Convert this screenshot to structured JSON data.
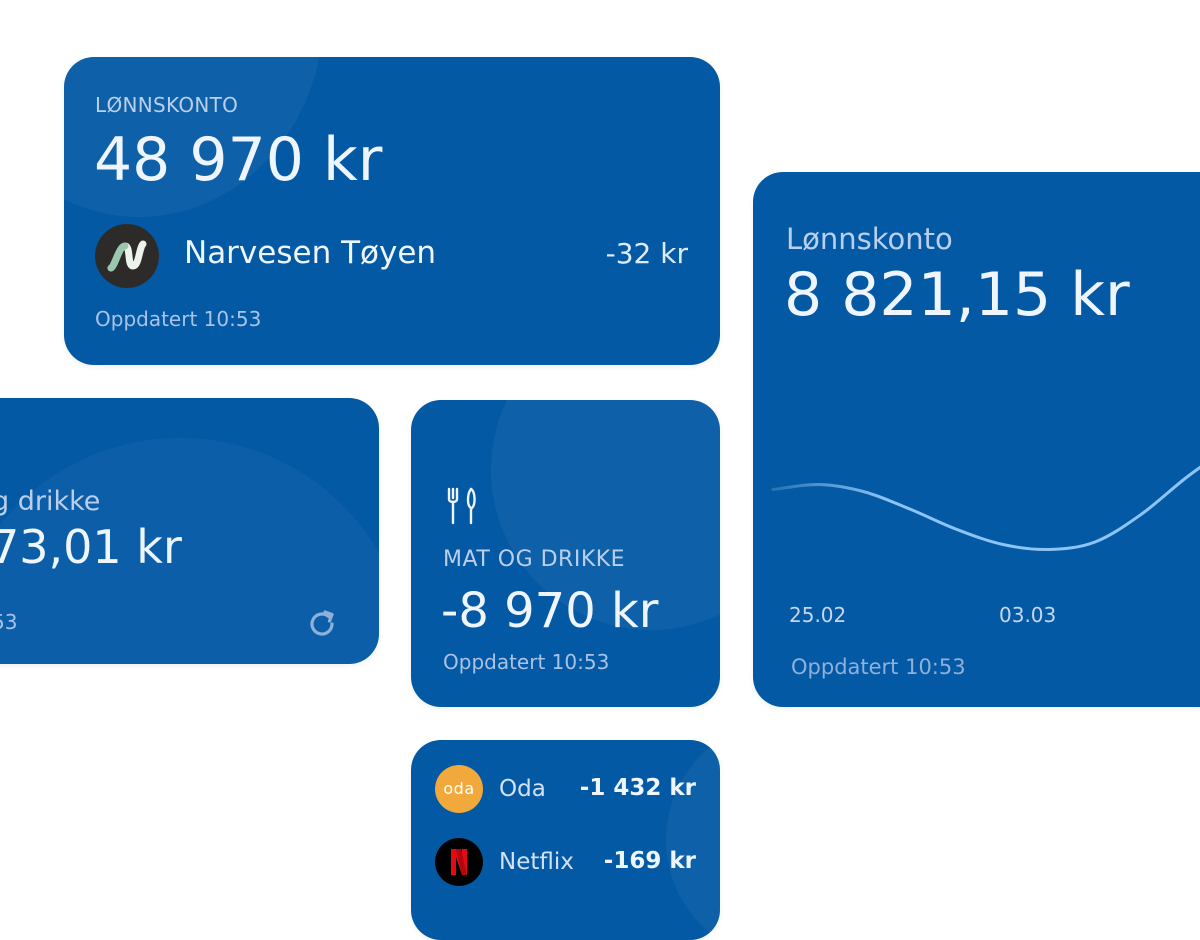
{
  "widgets": {
    "account_widget": {
      "label": "LØNNSKONTO",
      "balance": "48 970 kr",
      "last_transaction": {
        "merchant": "Narvesen Tøyen",
        "amount": "-32 kr",
        "icon": "narvesen-logo-icon"
      },
      "updated": "Oppdatert 10:53"
    },
    "category_widget_partial": {
      "category": "g drikke",
      "amount": "73,01 kr",
      "updated": "53",
      "icon": "refresh-icon"
    },
    "category_widget": {
      "icon": "fork-knife-icon",
      "label": "MAT OG DRIKKE",
      "amount": "-8 970 kr",
      "updated": "Oppdatert 10:53"
    },
    "chart_widget": {
      "label": "Lønnskonto",
      "balance": "8 821,15 kr",
      "updated": "Oppdatert 10:53"
    },
    "transactions_widget": {
      "items": [
        {
          "name": "Oda",
          "amount": "-1 432 kr",
          "icon": "oda-logo-icon",
          "logo_text": "oda",
          "color": "#f2a93b"
        },
        {
          "name": "Netflix",
          "amount": "-169 kr",
          "icon": "netflix-logo-icon",
          "color": "#e50914"
        }
      ]
    }
  },
  "colors": {
    "widget_background": "#0459a5",
    "chart_line": "#8cc4f5",
    "page_background": "#ffffff"
  },
  "chart_data": {
    "type": "line",
    "title": "",
    "xlabel": "",
    "ylabel": "",
    "x_ticks": [
      "25.02",
      "03.03"
    ],
    "grid": false,
    "legend": "none",
    "series": [
      {
        "x": [
          0,
          0.1,
          0.2,
          0.3,
          0.4,
          0.5,
          0.6,
          0.7,
          0.8,
          0.9,
          1.0
        ],
        "values": [
          0.62,
          0.66,
          0.6,
          0.46,
          0.3,
          0.18,
          0.14,
          0.2,
          0.42,
          0.72,
          0.98
        ]
      }
    ]
  }
}
